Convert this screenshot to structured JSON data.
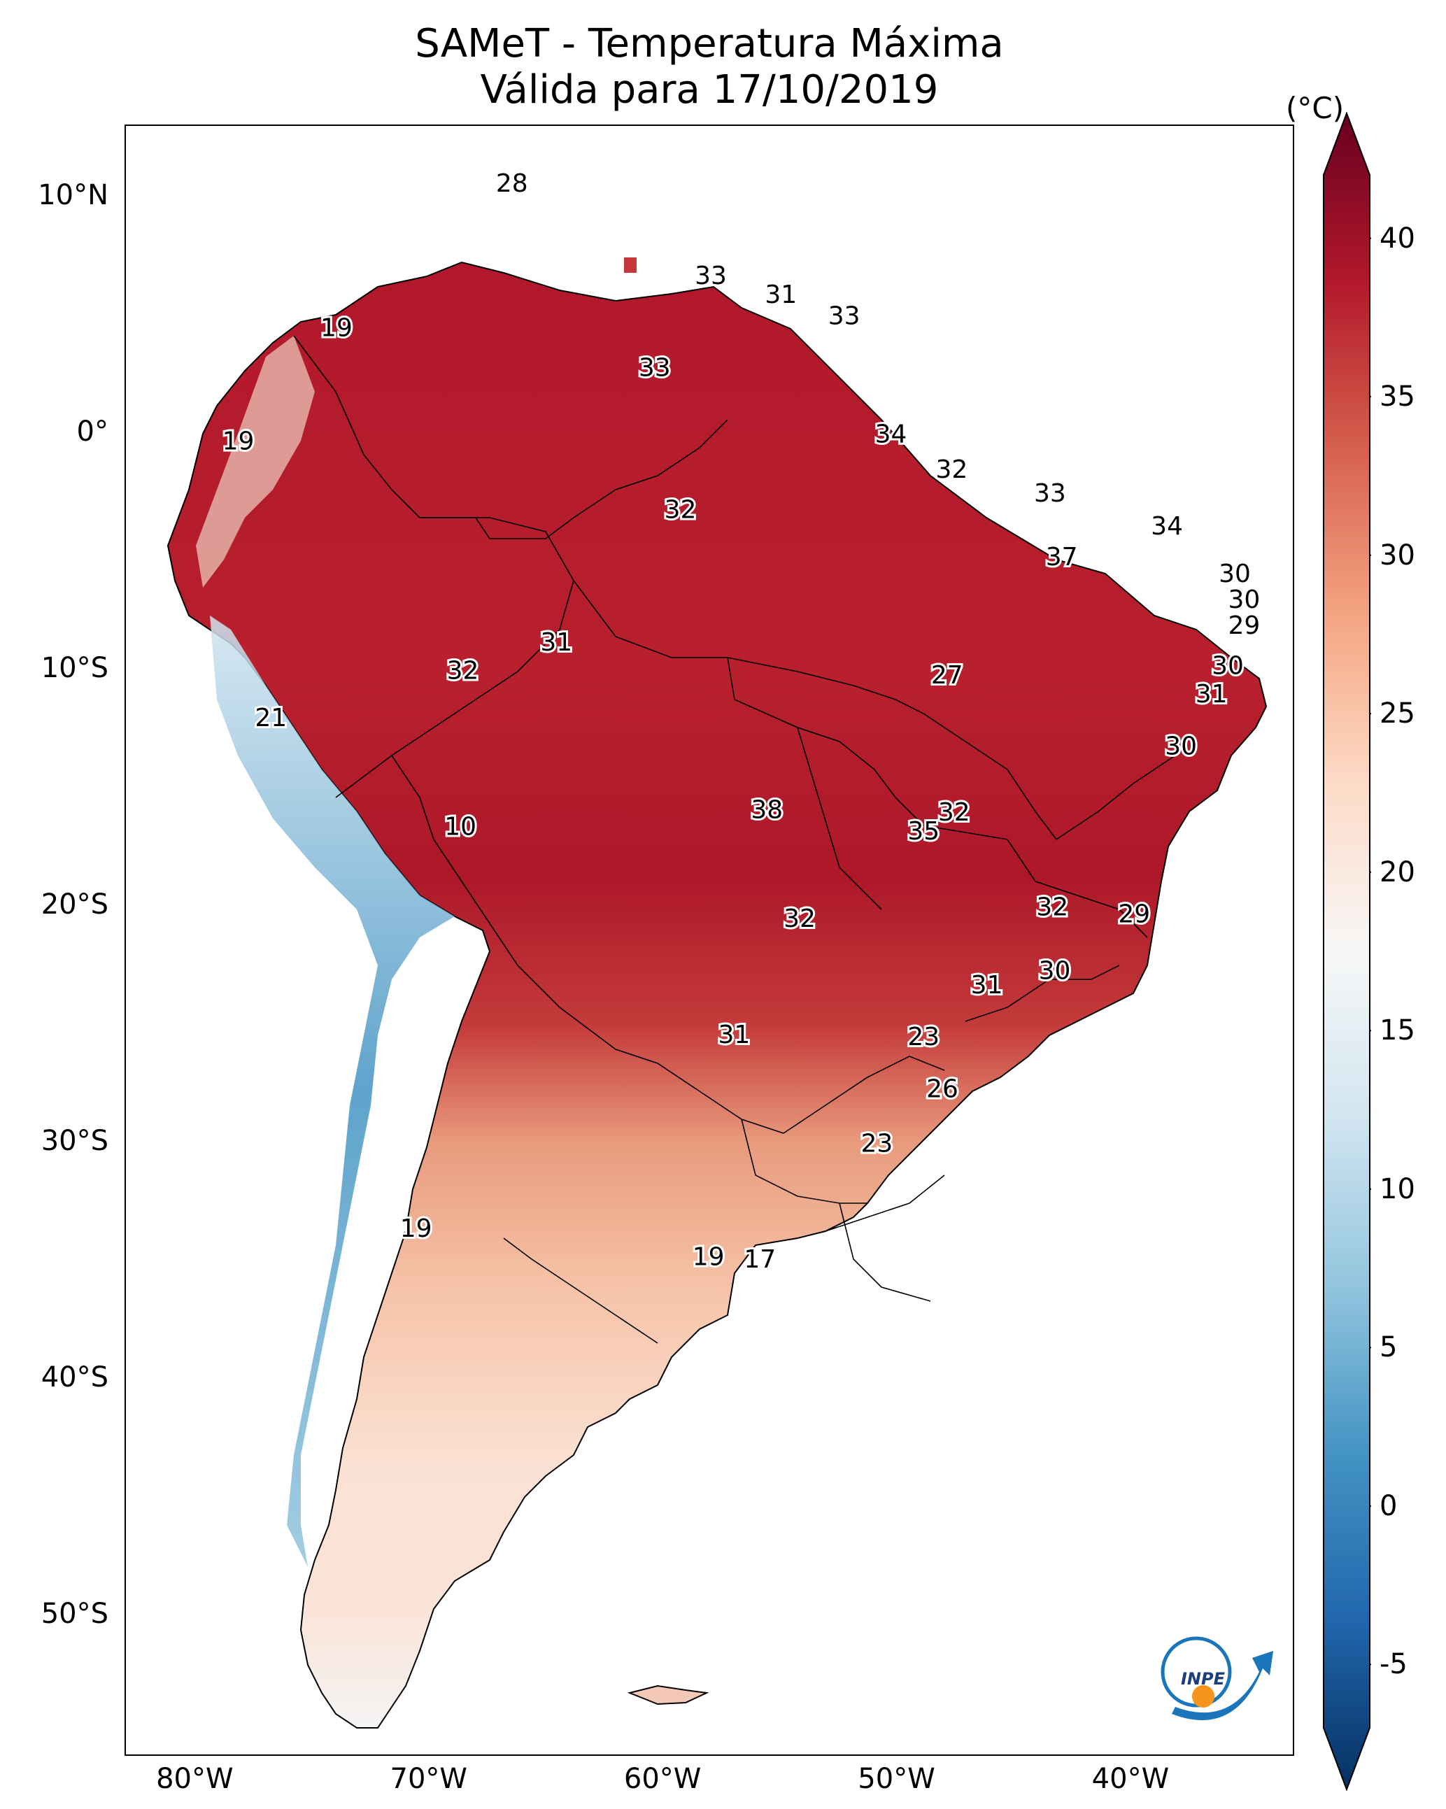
{
  "title": {
    "line1": "SAMeT - Temperatura Máxima",
    "line2": "Válida para 17/10/2019"
  },
  "map": {
    "lat_ticks": [
      {
        "label": "10°N",
        "lat": 10
      },
      {
        "label": "0°",
        "lat": 0
      },
      {
        "label": "10°S",
        "lat": -10
      },
      {
        "label": "20°S",
        "lat": -20
      },
      {
        "label": "30°S",
        "lat": -30
      },
      {
        "label": "40°S",
        "lat": -40
      },
      {
        "label": "50°S",
        "lat": -50
      }
    ],
    "lon_ticks": [
      {
        "label": "80°W",
        "lon": -80
      },
      {
        "label": "70°W",
        "lon": -70
      },
      {
        "label": "60°W",
        "lon": -60
      },
      {
        "label": "50°W",
        "lon": -50
      },
      {
        "label": "40°W",
        "lon": -40
      }
    ],
    "extent": {
      "lon_min": -83,
      "lon_max": -33,
      "lat_min": -56,
      "lat_max": 13
    },
    "point_labels": [
      {
        "value": "28",
        "lon": -66.5,
        "lat": 10.6
      },
      {
        "value": "19",
        "lon": -74.0,
        "lat": 4.5
      },
      {
        "value": "19",
        "lon": -78.2,
        "lat": -0.3
      },
      {
        "value": "33",
        "lon": -58.0,
        "lat": 6.7
      },
      {
        "value": "31",
        "lon": -55.0,
        "lat": 5.9
      },
      {
        "value": "33",
        "lon": -52.3,
        "lat": 5.0
      },
      {
        "value": "33",
        "lon": -60.4,
        "lat": 2.8
      },
      {
        "value": "34",
        "lon": -50.3,
        "lat": 0.0
      },
      {
        "value": "32",
        "lon": -47.7,
        "lat": -1.5
      },
      {
        "value": "33",
        "lon": -43.5,
        "lat": -2.5
      },
      {
        "value": "32",
        "lon": -59.3,
        "lat": -3.2
      },
      {
        "value": "34",
        "lon": -38.5,
        "lat": -3.9
      },
      {
        "value": "37",
        "lon": -43.0,
        "lat": -5.2
      },
      {
        "value": "30",
        "lon": -35.6,
        "lat": -5.9
      },
      {
        "value": "30",
        "lon": -35.2,
        "lat": -7.0
      },
      {
        "value": "29",
        "lon": -35.2,
        "lat": -8.1
      },
      {
        "value": "31",
        "lon": -64.6,
        "lat": -8.8
      },
      {
        "value": "32",
        "lon": -68.6,
        "lat": -10.0
      },
      {
        "value": "27",
        "lon": -47.9,
        "lat": -10.2
      },
      {
        "value": "30",
        "lon": -35.9,
        "lat": -9.8
      },
      {
        "value": "31",
        "lon": -36.6,
        "lat": -11.0
      },
      {
        "value": "21",
        "lon": -76.8,
        "lat": -12.0
      },
      {
        "value": "30",
        "lon": -37.9,
        "lat": -13.2
      },
      {
        "value": "10",
        "lon": -68.7,
        "lat": -16.6
      },
      {
        "value": "38",
        "lon": -55.6,
        "lat": -15.9
      },
      {
        "value": "32",
        "lon": -47.6,
        "lat": -16.0
      },
      {
        "value": "35",
        "lon": -48.9,
        "lat": -16.8
      },
      {
        "value": "32",
        "lon": -43.4,
        "lat": -20.0
      },
      {
        "value": "29",
        "lon": -39.9,
        "lat": -20.3
      },
      {
        "value": "32",
        "lon": -54.2,
        "lat": -20.5
      },
      {
        "value": "30",
        "lon": -43.3,
        "lat": -22.7
      },
      {
        "value": "31",
        "lon": -46.2,
        "lat": -23.3
      },
      {
        "value": "31",
        "lon": -57.0,
        "lat": -25.4
      },
      {
        "value": "23",
        "lon": -48.9,
        "lat": -25.5
      },
      {
        "value": "26",
        "lon": -48.1,
        "lat": -27.7
      },
      {
        "value": "23",
        "lon": -50.9,
        "lat": -30.0
      },
      {
        "value": "19",
        "lon": -70.6,
        "lat": -33.6
      },
      {
        "value": "19",
        "lon": -58.1,
        "lat": -34.8
      },
      {
        "value": "17",
        "lon": -55.9,
        "lat": -34.9
      }
    ]
  },
  "colorbar": {
    "unit": "(°C)",
    "min": -7,
    "max": 42,
    "ticks": [
      {
        "label": "40",
        "value": 40
      },
      {
        "label": "35",
        "value": 35
      },
      {
        "label": "30",
        "value": 30
      },
      {
        "label": "25",
        "value": 25
      },
      {
        "label": "20",
        "value": 20
      },
      {
        "label": "15",
        "value": 15
      },
      {
        "label": "10",
        "value": 10
      },
      {
        "label": "5",
        "value": 5
      },
      {
        "label": "0",
        "value": 0
      },
      {
        "label": "-5",
        "value": -5
      }
    ],
    "colors": [
      "#053061",
      "#2166ac",
      "#4393c3",
      "#92c5de",
      "#d1e5f0",
      "#f7f7f7",
      "#fddbc7",
      "#f4a582",
      "#d6604d",
      "#b2182b",
      "#67001f"
    ]
  },
  "logo": {
    "text": "INPE",
    "colors": {
      "blue": "#1a75bb",
      "orange": "#f7941d"
    }
  }
}
